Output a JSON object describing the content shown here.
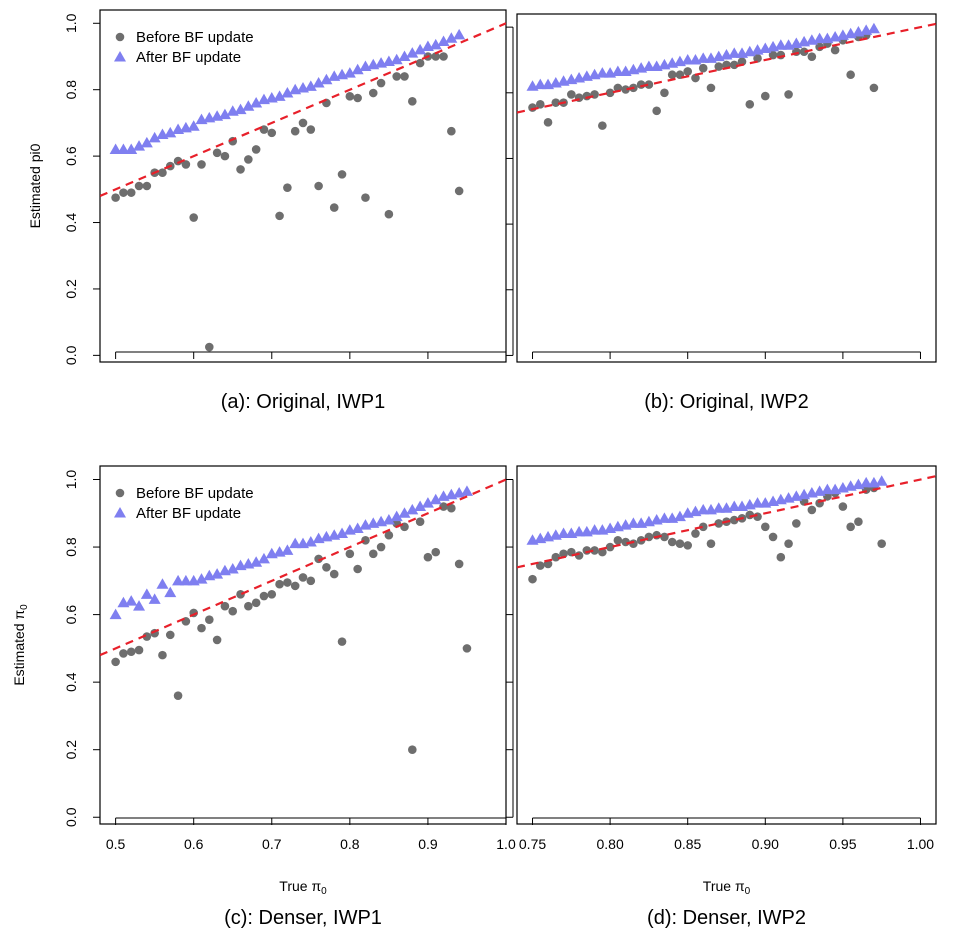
{
  "colors": {
    "before": "#6e6e6e",
    "after": "#7f7ff0",
    "reference_line": "#e8202a"
  },
  "chart_data": [
    {
      "type": "scatter",
      "caption": "(a): Original, IWP1",
      "xlabel": "",
      "ylabel": "Estimated pi0",
      "xlim": [
        0.48,
        1.0
      ],
      "ylim": [
        -0.02,
        1.04
      ],
      "x_ticks": [
        0.5,
        0.6,
        0.7,
        0.8,
        0.9,
        1.0
      ],
      "x_tick_labels": [
        "",
        "",
        "",
        "",
        "",
        ""
      ],
      "y_ticks": [
        0.0,
        0.2,
        0.4,
        0.6,
        0.8,
        1.0
      ],
      "y_tick_labels": [
        "0.0",
        "0.2",
        "0.4",
        "0.6",
        "0.8",
        "1.0"
      ],
      "legend": {
        "show": true,
        "position": "top-left",
        "entries": [
          "Before BF update",
          "After BF update"
        ]
      },
      "reference_line": "y = x",
      "series": [
        {
          "name": "Before BF update",
          "marker": "circle",
          "x": [
            0.5,
            0.51,
            0.52,
            0.53,
            0.54,
            0.55,
            0.56,
            0.57,
            0.58,
            0.59,
            0.6,
            0.61,
            0.62,
            0.63,
            0.64,
            0.65,
            0.66,
            0.67,
            0.68,
            0.69,
            0.7,
            0.71,
            0.72,
            0.73,
            0.74,
            0.75,
            0.76,
            0.77,
            0.78,
            0.79,
            0.8,
            0.81,
            0.82,
            0.83,
            0.84,
            0.85,
            0.86,
            0.87,
            0.88,
            0.89,
            0.9,
            0.91,
            0.92,
            0.93,
            0.94
          ],
          "y": [
            0.475,
            0.49,
            0.49,
            0.51,
            0.51,
            0.55,
            0.55,
            0.57,
            0.585,
            0.575,
            0.415,
            0.575,
            0.025,
            0.61,
            0.6,
            0.645,
            0.56,
            0.59,
            0.62,
            0.68,
            0.67,
            0.42,
            0.505,
            0.675,
            0.7,
            0.68,
            0.51,
            0.76,
            0.445,
            0.545,
            0.78,
            0.775,
            0.475,
            0.79,
            0.82,
            0.425,
            0.84,
            0.84,
            0.765,
            0.88,
            0.9,
            0.9,
            0.9,
            0.675,
            0.495
          ]
        },
        {
          "name": "After BF update",
          "marker": "triangle",
          "x": [
            0.5,
            0.51,
            0.52,
            0.53,
            0.54,
            0.55,
            0.56,
            0.57,
            0.58,
            0.59,
            0.6,
            0.61,
            0.62,
            0.63,
            0.64,
            0.65,
            0.66,
            0.67,
            0.68,
            0.69,
            0.7,
            0.71,
            0.72,
            0.73,
            0.74,
            0.75,
            0.76,
            0.77,
            0.78,
            0.79,
            0.8,
            0.81,
            0.82,
            0.83,
            0.84,
            0.85,
            0.86,
            0.87,
            0.88,
            0.89,
            0.9,
            0.91,
            0.92,
            0.93,
            0.94
          ],
          "y": [
            0.62,
            0.62,
            0.62,
            0.63,
            0.64,
            0.655,
            0.665,
            0.67,
            0.68,
            0.685,
            0.69,
            0.71,
            0.715,
            0.72,
            0.725,
            0.735,
            0.74,
            0.75,
            0.76,
            0.77,
            0.775,
            0.78,
            0.79,
            0.8,
            0.805,
            0.81,
            0.82,
            0.83,
            0.84,
            0.845,
            0.85,
            0.86,
            0.87,
            0.875,
            0.88,
            0.885,
            0.89,
            0.9,
            0.91,
            0.92,
            0.93,
            0.935,
            0.945,
            0.955,
            0.965
          ]
        }
      ]
    },
    {
      "type": "scatter",
      "caption": "(b): Original, IWP2",
      "xlabel": "",
      "ylabel": "",
      "xlim": [
        0.74,
        1.01
      ],
      "ylim": [
        -0.02,
        1.04
      ],
      "x_ticks": [
        0.75,
        0.8,
        0.85,
        0.9,
        0.95,
        1.0
      ],
      "x_tick_labels": [
        "",
        "",
        "",
        "",
        "",
        ""
      ],
      "y_ticks": [
        0.0,
        0.2,
        0.4,
        0.6,
        0.8,
        1.0
      ],
      "y_tick_labels": [
        "",
        "",
        "",
        "",
        "",
        ""
      ],
      "legend": {
        "show": false
      },
      "reference_line": "y = x",
      "series": [
        {
          "name": "Before BF update",
          "marker": "circle",
          "x": [
            0.75,
            0.755,
            0.76,
            0.765,
            0.77,
            0.775,
            0.78,
            0.785,
            0.79,
            0.795,
            0.8,
            0.805,
            0.81,
            0.815,
            0.82,
            0.825,
            0.83,
            0.835,
            0.84,
            0.845,
            0.85,
            0.855,
            0.86,
            0.865,
            0.87,
            0.875,
            0.88,
            0.885,
            0.89,
            0.895,
            0.9,
            0.905,
            0.91,
            0.915,
            0.92,
            0.925,
            0.93,
            0.935,
            0.94,
            0.945,
            0.95,
            0.955,
            0.96,
            0.965,
            0.97
          ],
          "y": [
            0.755,
            0.765,
            0.71,
            0.77,
            0.77,
            0.795,
            0.785,
            0.79,
            0.795,
            0.7,
            0.8,
            0.815,
            0.81,
            0.815,
            0.825,
            0.825,
            0.745,
            0.8,
            0.855,
            0.855,
            0.865,
            0.845,
            0.875,
            0.815,
            0.88,
            0.885,
            0.885,
            0.895,
            0.765,
            0.905,
            0.79,
            0.915,
            0.915,
            0.795,
            0.925,
            0.925,
            0.91,
            0.94,
            0.95,
            0.93,
            0.96,
            0.855,
            0.97,
            0.975,
            0.815
          ]
        },
        {
          "name": "After BF update",
          "marker": "triangle",
          "x": [
            0.75,
            0.755,
            0.76,
            0.765,
            0.77,
            0.775,
            0.78,
            0.785,
            0.79,
            0.795,
            0.8,
            0.805,
            0.81,
            0.815,
            0.82,
            0.825,
            0.83,
            0.835,
            0.84,
            0.845,
            0.85,
            0.855,
            0.86,
            0.865,
            0.87,
            0.875,
            0.88,
            0.885,
            0.89,
            0.895,
            0.9,
            0.905,
            0.91,
            0.915,
            0.92,
            0.925,
            0.93,
            0.935,
            0.94,
            0.945,
            0.95,
            0.955,
            0.96,
            0.965,
            0.97
          ],
          "y": [
            0.82,
            0.825,
            0.825,
            0.83,
            0.835,
            0.84,
            0.845,
            0.85,
            0.855,
            0.86,
            0.86,
            0.865,
            0.865,
            0.87,
            0.875,
            0.88,
            0.88,
            0.885,
            0.89,
            0.895,
            0.9,
            0.9,
            0.905,
            0.905,
            0.91,
            0.915,
            0.92,
            0.92,
            0.925,
            0.93,
            0.935,
            0.94,
            0.945,
            0.945,
            0.95,
            0.955,
            0.96,
            0.965,
            0.965,
            0.97,
            0.975,
            0.98,
            0.985,
            0.99,
            0.995
          ]
        }
      ]
    },
    {
      "type": "scatter",
      "caption": "(c): Denser, IWP1",
      "xlabel": "True π0",
      "ylabel": "Estimated π0",
      "xlim": [
        0.48,
        1.0
      ],
      "ylim": [
        -0.02,
        1.04
      ],
      "x_ticks": [
        0.5,
        0.6,
        0.7,
        0.8,
        0.9,
        1.0
      ],
      "x_tick_labels": [
        "0.5",
        "0.6",
        "0.7",
        "0.8",
        "0.9",
        "1.0"
      ],
      "y_ticks": [
        0.0,
        0.2,
        0.4,
        0.6,
        0.8,
        1.0
      ],
      "y_tick_labels": [
        "0.0",
        "0.2",
        "0.4",
        "0.6",
        "0.8",
        "1.0"
      ],
      "legend": {
        "show": true,
        "position": "top-left",
        "entries": [
          "Before BF update",
          "After BF update"
        ]
      },
      "reference_line": "y = x",
      "series": [
        {
          "name": "Before BF update",
          "marker": "circle",
          "x": [
            0.5,
            0.51,
            0.52,
            0.53,
            0.54,
            0.55,
            0.56,
            0.57,
            0.58,
            0.59,
            0.6,
            0.61,
            0.62,
            0.63,
            0.64,
            0.65,
            0.66,
            0.67,
            0.68,
            0.69,
            0.7,
            0.71,
            0.72,
            0.73,
            0.74,
            0.75,
            0.76,
            0.77,
            0.78,
            0.79,
            0.8,
            0.81,
            0.82,
            0.83,
            0.84,
            0.85,
            0.86,
            0.87,
            0.88,
            0.89,
            0.9,
            0.91,
            0.92,
            0.93,
            0.94,
            0.95
          ],
          "y": [
            0.46,
            0.485,
            0.49,
            0.495,
            0.535,
            0.545,
            0.48,
            0.54,
            0.36,
            0.58,
            0.605,
            0.56,
            0.585,
            0.525,
            0.625,
            0.61,
            0.66,
            0.625,
            0.635,
            0.655,
            0.66,
            0.69,
            0.695,
            0.685,
            0.71,
            0.7,
            0.765,
            0.74,
            0.72,
            0.52,
            0.78,
            0.735,
            0.82,
            0.78,
            0.8,
            0.835,
            0.87,
            0.86,
            0.2,
            0.875,
            0.77,
            0.785,
            0.92,
            0.915,
            0.75,
            0.5
          ]
        },
        {
          "name": "After BF update",
          "marker": "triangle",
          "x": [
            0.5,
            0.51,
            0.52,
            0.53,
            0.54,
            0.55,
            0.56,
            0.57,
            0.58,
            0.59,
            0.6,
            0.61,
            0.62,
            0.63,
            0.64,
            0.65,
            0.66,
            0.67,
            0.68,
            0.69,
            0.7,
            0.71,
            0.72,
            0.73,
            0.74,
            0.75,
            0.76,
            0.77,
            0.78,
            0.79,
            0.8,
            0.81,
            0.82,
            0.83,
            0.84,
            0.85,
            0.86,
            0.87,
            0.88,
            0.89,
            0.9,
            0.91,
            0.92,
            0.93,
            0.94,
            0.95
          ],
          "y": [
            0.6,
            0.635,
            0.64,
            0.625,
            0.66,
            0.645,
            0.69,
            0.665,
            0.7,
            0.7,
            0.7,
            0.705,
            0.715,
            0.72,
            0.73,
            0.735,
            0.745,
            0.75,
            0.755,
            0.765,
            0.78,
            0.785,
            0.79,
            0.81,
            0.81,
            0.815,
            0.825,
            0.83,
            0.835,
            0.84,
            0.85,
            0.855,
            0.865,
            0.87,
            0.875,
            0.88,
            0.89,
            0.9,
            0.91,
            0.92,
            0.93,
            0.94,
            0.95,
            0.955,
            0.96,
            0.965
          ]
        }
      ]
    },
    {
      "type": "scatter",
      "caption": "(d): Denser, IWP2",
      "xlabel": "True π0",
      "ylabel": "",
      "xlim": [
        0.74,
        1.01
      ],
      "ylim": [
        -0.02,
        1.04
      ],
      "x_ticks": [
        0.75,
        0.8,
        0.85,
        0.9,
        0.95,
        1.0
      ],
      "x_tick_labels": [
        "0.75",
        "0.80",
        "0.85",
        "0.90",
        "0.95",
        "1.00"
      ],
      "y_ticks": [
        0.0,
        0.2,
        0.4,
        0.6,
        0.8,
        1.0
      ],
      "y_tick_labels": [
        "",
        "",
        "",
        "",
        "",
        ""
      ],
      "legend": {
        "show": false
      },
      "reference_line": "y = x",
      "series": [
        {
          "name": "Before BF update",
          "marker": "circle",
          "x": [
            0.75,
            0.755,
            0.76,
            0.765,
            0.77,
            0.775,
            0.78,
            0.785,
            0.79,
            0.795,
            0.8,
            0.805,
            0.81,
            0.815,
            0.82,
            0.825,
            0.83,
            0.835,
            0.84,
            0.845,
            0.85,
            0.855,
            0.86,
            0.865,
            0.87,
            0.875,
            0.88,
            0.885,
            0.89,
            0.895,
            0.9,
            0.905,
            0.91,
            0.915,
            0.92,
            0.925,
            0.93,
            0.935,
            0.94,
            0.945,
            0.95,
            0.955,
            0.96,
            0.965,
            0.97,
            0.975
          ],
          "y": [
            0.705,
            0.745,
            0.75,
            0.77,
            0.78,
            0.785,
            0.775,
            0.79,
            0.79,
            0.785,
            0.8,
            0.82,
            0.815,
            0.81,
            0.82,
            0.83,
            0.835,
            0.83,
            0.815,
            0.81,
            0.805,
            0.84,
            0.86,
            0.81,
            0.87,
            0.875,
            0.88,
            0.885,
            0.895,
            0.89,
            0.86,
            0.83,
            0.77,
            0.81,
            0.87,
            0.935,
            0.91,
            0.93,
            0.95,
            0.96,
            0.92,
            0.86,
            0.875,
            0.97,
            0.975,
            0.81
          ]
        },
        {
          "name": "After BF update",
          "marker": "triangle",
          "x": [
            0.75,
            0.755,
            0.76,
            0.765,
            0.77,
            0.775,
            0.78,
            0.785,
            0.79,
            0.795,
            0.8,
            0.805,
            0.81,
            0.815,
            0.82,
            0.825,
            0.83,
            0.835,
            0.84,
            0.845,
            0.85,
            0.855,
            0.86,
            0.865,
            0.87,
            0.875,
            0.88,
            0.885,
            0.89,
            0.895,
            0.9,
            0.905,
            0.91,
            0.915,
            0.92,
            0.925,
            0.93,
            0.935,
            0.94,
            0.945,
            0.95,
            0.955,
            0.96,
            0.965,
            0.97,
            0.975
          ],
          "y": [
            0.82,
            0.825,
            0.83,
            0.835,
            0.84,
            0.84,
            0.845,
            0.845,
            0.85,
            0.85,
            0.855,
            0.86,
            0.865,
            0.87,
            0.87,
            0.875,
            0.88,
            0.885,
            0.885,
            0.89,
            0.9,
            0.905,
            0.91,
            0.91,
            0.915,
            0.915,
            0.92,
            0.92,
            0.925,
            0.93,
            0.93,
            0.935,
            0.94,
            0.945,
            0.95,
            0.955,
            0.96,
            0.965,
            0.97,
            0.97,
            0.975,
            0.98,
            0.985,
            0.99,
            0.99,
            0.995
          ]
        }
      ]
    }
  ]
}
